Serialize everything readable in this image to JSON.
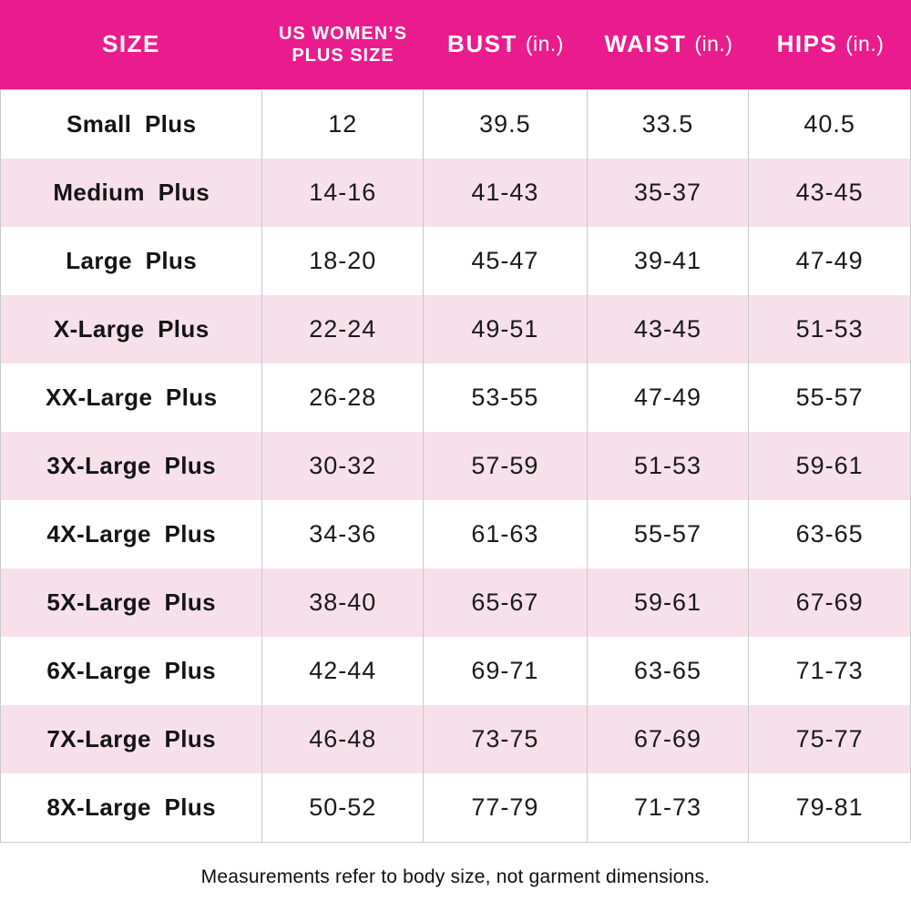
{
  "colors": {
    "header_bg": "#EA1C8D",
    "header_text": "#FFFFFF",
    "row_bg": "#FFFFFF",
    "row_alt_bg": "#F8E0EB",
    "divider": "#C9C9C9",
    "body_text": "#1A1A1A"
  },
  "table": {
    "header": {
      "size": "SIZE",
      "plus_size_line1": "US WOMEN’S",
      "plus_size_line2": "PLUS SIZE",
      "bust": "BUST",
      "waist": "WAIST",
      "hips": "HIPS",
      "unit": "(in.)"
    },
    "rows": [
      {
        "size": "Small Plus",
        "plus": "12",
        "bust": "39.5",
        "waist": "33.5",
        "hips": "40.5"
      },
      {
        "size": "Medium Plus",
        "plus": "14-16",
        "bust": "41-43",
        "waist": "35-37",
        "hips": "43-45"
      },
      {
        "size": "Large Plus",
        "plus": "18-20",
        "bust": "45-47",
        "waist": "39-41",
        "hips": "47-49"
      },
      {
        "size": "X-Large Plus",
        "plus": "22-24",
        "bust": "49-51",
        "waist": "43-45",
        "hips": "51-53"
      },
      {
        "size": "XX-Large Plus",
        "plus": "26-28",
        "bust": "53-55",
        "waist": "47-49",
        "hips": "55-57"
      },
      {
        "size": "3X-Large Plus",
        "plus": "30-32",
        "bust": "57-59",
        "waist": "51-53",
        "hips": "59-61"
      },
      {
        "size": "4X-Large Plus",
        "plus": "34-36",
        "bust": "61-63",
        "waist": "55-57",
        "hips": "63-65"
      },
      {
        "size": "5X-Large Plus",
        "plus": "38-40",
        "bust": "65-67",
        "waist": "59-61",
        "hips": "67-69"
      },
      {
        "size": "6X-Large Plus",
        "plus": "42-44",
        "bust": "69-71",
        "waist": "63-65",
        "hips": "71-73"
      },
      {
        "size": "7X-Large Plus",
        "plus": "46-48",
        "bust": "73-75",
        "waist": "67-69",
        "hips": "75-77"
      },
      {
        "size": "8X-Large Plus",
        "plus": "50-52",
        "bust": "77-79",
        "waist": "71-73",
        "hips": "79-81"
      }
    ]
  },
  "footer": {
    "note": "Measurements refer to body size, not garment dimensions."
  },
  "chart_data": {
    "type": "table",
    "columns": [
      "SIZE",
      "US WOMEN’S PLUS SIZE",
      "BUST (in.)",
      "WAIST (in.)",
      "HIPS (in.)"
    ],
    "rows": [
      [
        "Small Plus",
        "12",
        "39.5",
        "33.5",
        "40.5"
      ],
      [
        "Medium Plus",
        "14-16",
        "41-43",
        "35-37",
        "43-45"
      ],
      [
        "Large Plus",
        "18-20",
        "45-47",
        "39-41",
        "47-49"
      ],
      [
        "X-Large Plus",
        "22-24",
        "49-51",
        "43-45",
        "51-53"
      ],
      [
        "XX-Large Plus",
        "26-28",
        "53-55",
        "47-49",
        "55-57"
      ],
      [
        "3X-Large Plus",
        "30-32",
        "57-59",
        "51-53",
        "59-61"
      ],
      [
        "4X-Large Plus",
        "34-36",
        "61-63",
        "55-57",
        "63-65"
      ],
      [
        "5X-Large Plus",
        "38-40",
        "65-67",
        "59-61",
        "67-69"
      ],
      [
        "6X-Large Plus",
        "42-44",
        "69-71",
        "63-65",
        "71-73"
      ],
      [
        "7X-Large Plus",
        "46-48",
        "73-75",
        "67-69",
        "75-77"
      ],
      [
        "8X-Large Plus",
        "50-52",
        "77-79",
        "71-73",
        "79-81"
      ]
    ],
    "footnote": "Measurements refer to body size, not garment dimensions.",
    "layout": {
      "header_background": "#EA1C8D",
      "alternating_row_background": "#F8E0EB",
      "grid": "vertical-dividers-only"
    }
  }
}
